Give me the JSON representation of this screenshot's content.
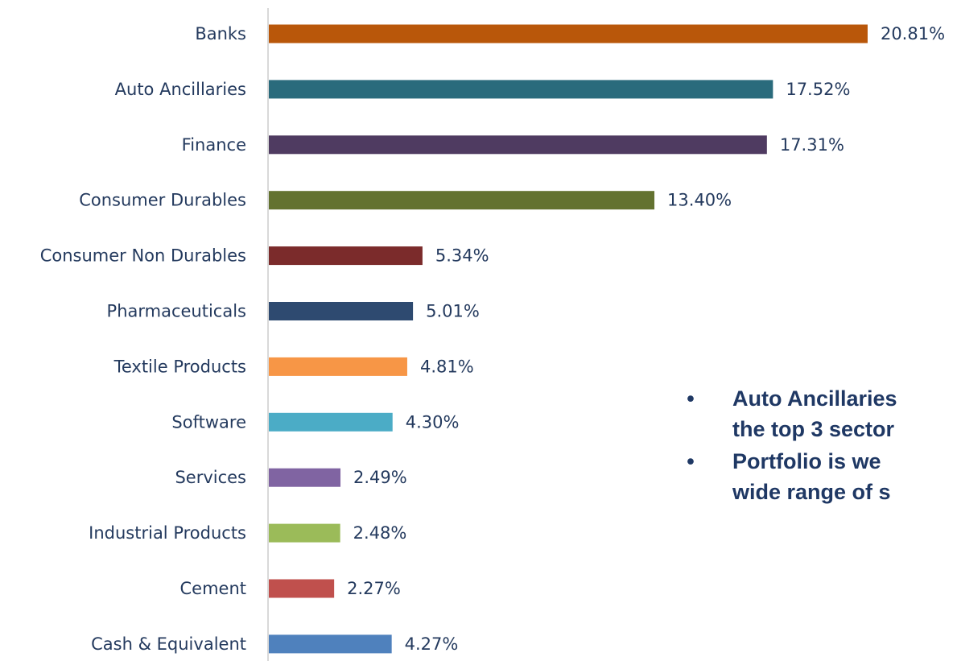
{
  "chart_data": {
    "type": "bar",
    "orientation": "horizontal",
    "categories": [
      "Banks",
      "Auto Ancillaries",
      "Finance",
      "Consumer Durables",
      "Consumer Non Durables",
      "Pharmaceuticals",
      "Textile Products",
      "Software",
      "Services",
      "Industrial Products",
      "Cement",
      "Cash & Equivalent"
    ],
    "values": [
      20.81,
      17.52,
      17.31,
      13.4,
      5.34,
      5.01,
      4.81,
      4.3,
      2.49,
      2.48,
      2.27,
      4.27
    ],
    "value_labels": [
      "20.81%",
      "17.52%",
      "17.31%",
      "13.40%",
      "5.34%",
      "5.01%",
      "4.81%",
      "4.30%",
      "2.49%",
      "2.48%",
      "2.27%",
      "4.27%"
    ],
    "colors": [
      "#b9570a",
      "#2a6b7c",
      "#4f3b61",
      "#637230",
      "#7b2b2b",
      "#2e4a70",
      "#f79646",
      "#4bacc6",
      "#8064a2",
      "#9bbb59",
      "#c0504d",
      "#4f81bd"
    ],
    "title": "",
    "xlabel": "",
    "ylabel": "",
    "xlim": [
      0,
      21
    ],
    "grid": false,
    "legend": "none"
  },
  "notes": {
    "bullet_symbol": "•",
    "items": [
      {
        "lines": [
          "Auto Ancillaries",
          "the top 3 sector"
        ]
      },
      {
        "lines": [
          "Portfolio is we",
          "wide range of s"
        ]
      }
    ]
  }
}
